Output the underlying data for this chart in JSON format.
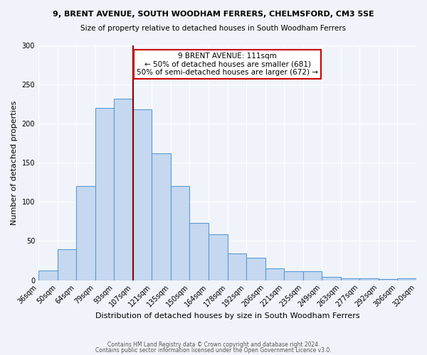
{
  "title1": "9, BRENT AVENUE, SOUTH WOODHAM FERRERS, CHELMSFORD, CM3 5SE",
  "title2": "Size of property relative to detached houses in South Woodham Ferrers",
  "xlabel": "Distribution of detached houses by size in South Woodham Ferrers",
  "ylabel": "Number of detached properties",
  "footer1": "Contains HM Land Registry data © Crown copyright and database right 2024.",
  "footer2": "Contains public sector information licensed under the Open Government Licence v3.0.",
  "bin_labels": [
    "36sqm",
    "50sqm",
    "64sqm",
    "79sqm",
    "93sqm",
    "107sqm",
    "121sqm",
    "135sqm",
    "150sqm",
    "164sqm",
    "178sqm",
    "192sqm",
    "206sqm",
    "221sqm",
    "235sqm",
    "249sqm",
    "263sqm",
    "277sqm",
    "292sqm",
    "306sqm",
    "320sqm"
  ],
  "bar_heights": [
    12,
    40,
    120,
    220,
    232,
    218,
    162,
    120,
    73,
    59,
    34,
    29,
    15,
    11,
    11,
    4,
    2,
    2,
    1,
    2
  ],
  "bar_color": "#c5d8f0",
  "bar_edge_color": "#5b9bd5",
  "property_value": 111,
  "property_label": "9 BRENT AVENUE: 111sqm",
  "annotation_line1": "← 50% of detached houses are smaller (681)",
  "annotation_line2": "50% of semi-detached houses are larger (672) →",
  "vline_color": "#8b0000",
  "vline_x_bin": 5,
  "annotation_box_color": "#ffffff",
  "annotation_box_edge": "#cc0000",
  "ylim": [
    0,
    300
  ],
  "yticks": [
    0,
    50,
    100,
    150,
    200,
    250,
    300
  ],
  "background_color": "#f0f4fa",
  "plot_bg_color": "#f0f4fa"
}
